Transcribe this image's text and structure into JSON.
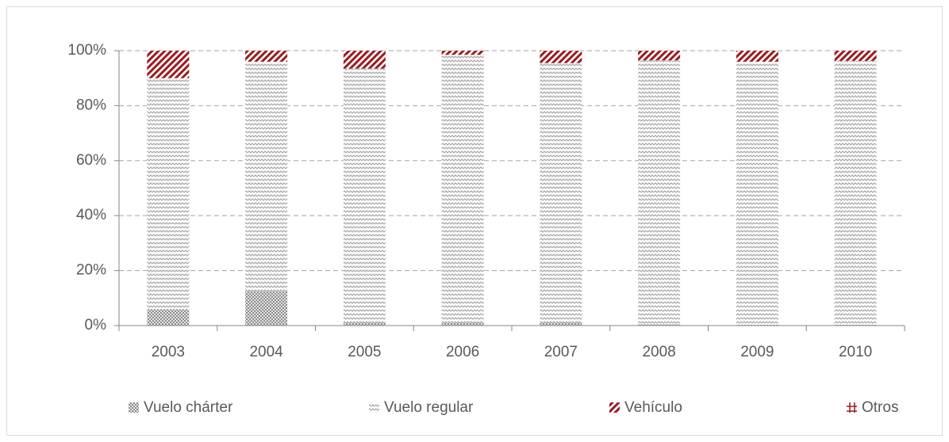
{
  "chart_data": {
    "type": "stacked_bar",
    "categories": [
      "2003",
      "2004",
      "2005",
      "2006",
      "2007",
      "2008",
      "2009",
      "2010"
    ],
    "series": [
      {
        "name": "Vuelo chárter",
        "color": "#8c8c8c",
        "values": [
          6,
          12.5,
          1,
          1,
          1,
          0.5,
          0.3,
          0.3
        ]
      },
      {
        "name": "Vuelo regular",
        "color": "#a6a6a6",
        "values": [
          84,
          83.5,
          92.5,
          97.5,
          94.5,
          96,
          95.7,
          96
        ]
      },
      {
        "name": "Vehículo",
        "color": "#9b1c1f",
        "values": [
          10,
          4,
          6.5,
          1.5,
          4.5,
          3.5,
          4,
          3.7
        ]
      },
      {
        "name": "Otros",
        "color": "#9b1c1f",
        "values": [
          0,
          0,
          0,
          0,
          0,
          0,
          0,
          0
        ]
      }
    ],
    "ylim": [
      0,
      100
    ],
    "yticks": [
      {
        "value": 0,
        "label": "0%"
      },
      {
        "value": 20,
        "label": "20%"
      },
      {
        "value": 40,
        "label": "40%"
      },
      {
        "value": 60,
        "label": "60%"
      },
      {
        "value": 80,
        "label": "80%"
      },
      {
        "value": 100,
        "label": "100%"
      }
    ],
    "grid": true,
    "legend": "bottom"
  }
}
